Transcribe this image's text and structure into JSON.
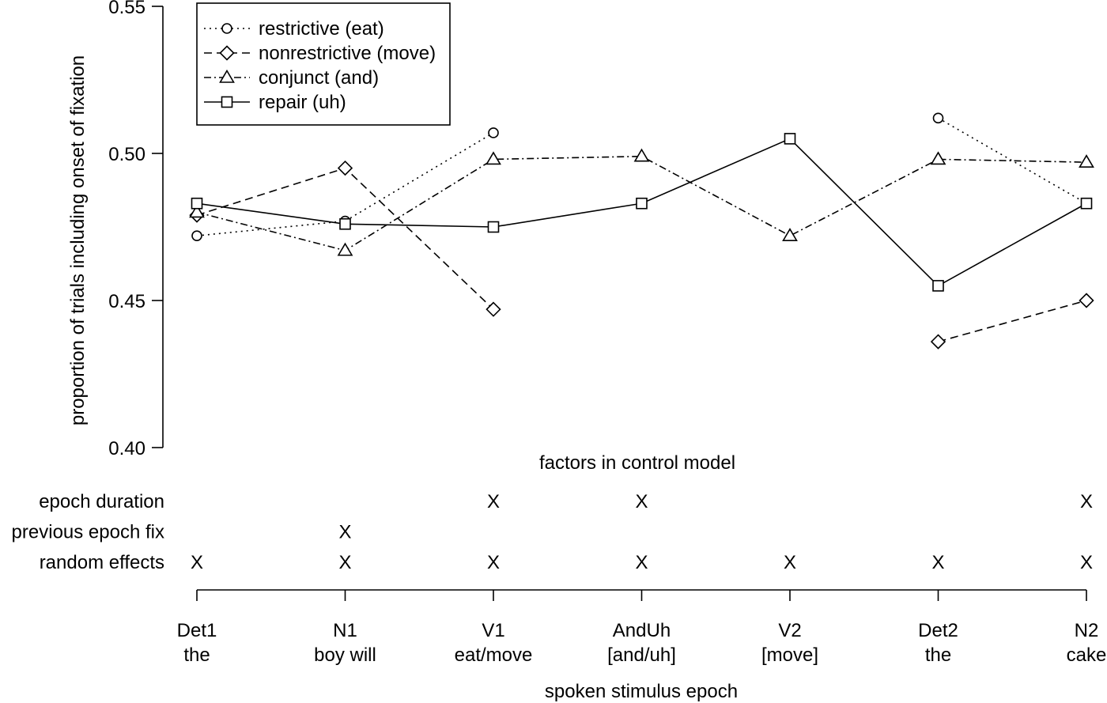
{
  "chart_data": {
    "type": "line",
    "ylabel": "proportion of trials including onset of fixation",
    "xlabel": "spoken stimulus epoch",
    "ylim": [
      0.4,
      0.55
    ],
    "y_ticks": [
      "0.40",
      "0.45",
      "0.50",
      "0.55"
    ],
    "y_tick_values": [
      0.4,
      0.45,
      0.5,
      0.55
    ],
    "categories": [
      {
        "line1": "Det1",
        "line2": "the"
      },
      {
        "line1": "N1",
        "line2": "boy will"
      },
      {
        "line1": "V1",
        "line2": "eat/move"
      },
      {
        "line1": "AndUh",
        "line2": "[and/uh]"
      },
      {
        "line1": "V2",
        "line2": "[move]"
      },
      {
        "line1": "Det2",
        "line2": "the"
      },
      {
        "line1": "N2",
        "line2": "cake"
      }
    ],
    "legend_position": "top-left",
    "series": [
      {
        "name": "restrictive (eat)",
        "marker": "circle",
        "dash": "2,5",
        "values": [
          0.472,
          0.477,
          0.507,
          null,
          null,
          0.512,
          0.483
        ]
      },
      {
        "name": "nonrestrictive (move)",
        "marker": "diamond",
        "dash": "10,6",
        "values": [
          0.479,
          0.495,
          0.447,
          null,
          null,
          0.436,
          0.45
        ]
      },
      {
        "name": "conjunct (and)",
        "marker": "triangle",
        "dash": "9,4,2,4",
        "values": [
          0.48,
          0.467,
          0.498,
          0.499,
          0.472,
          0.498,
          0.497
        ]
      },
      {
        "name": "repair (uh)",
        "marker": "square",
        "dash": "",
        "values": [
          0.483,
          0.476,
          0.475,
          0.483,
          0.505,
          0.455,
          0.483
        ]
      }
    ],
    "factors_title": "factors in control model",
    "factors": [
      {
        "label": "epoch duration",
        "marks": [
          "",
          "",
          "X",
          "X",
          "",
          "",
          "X"
        ]
      },
      {
        "label": "previous epoch fix",
        "marks": [
          "",
          "X",
          "",
          "",
          "",
          "",
          ""
        ]
      },
      {
        "label": "random effects",
        "marks": [
          "X",
          "X",
          "X",
          "X",
          "X",
          "X",
          "X"
        ]
      }
    ]
  }
}
